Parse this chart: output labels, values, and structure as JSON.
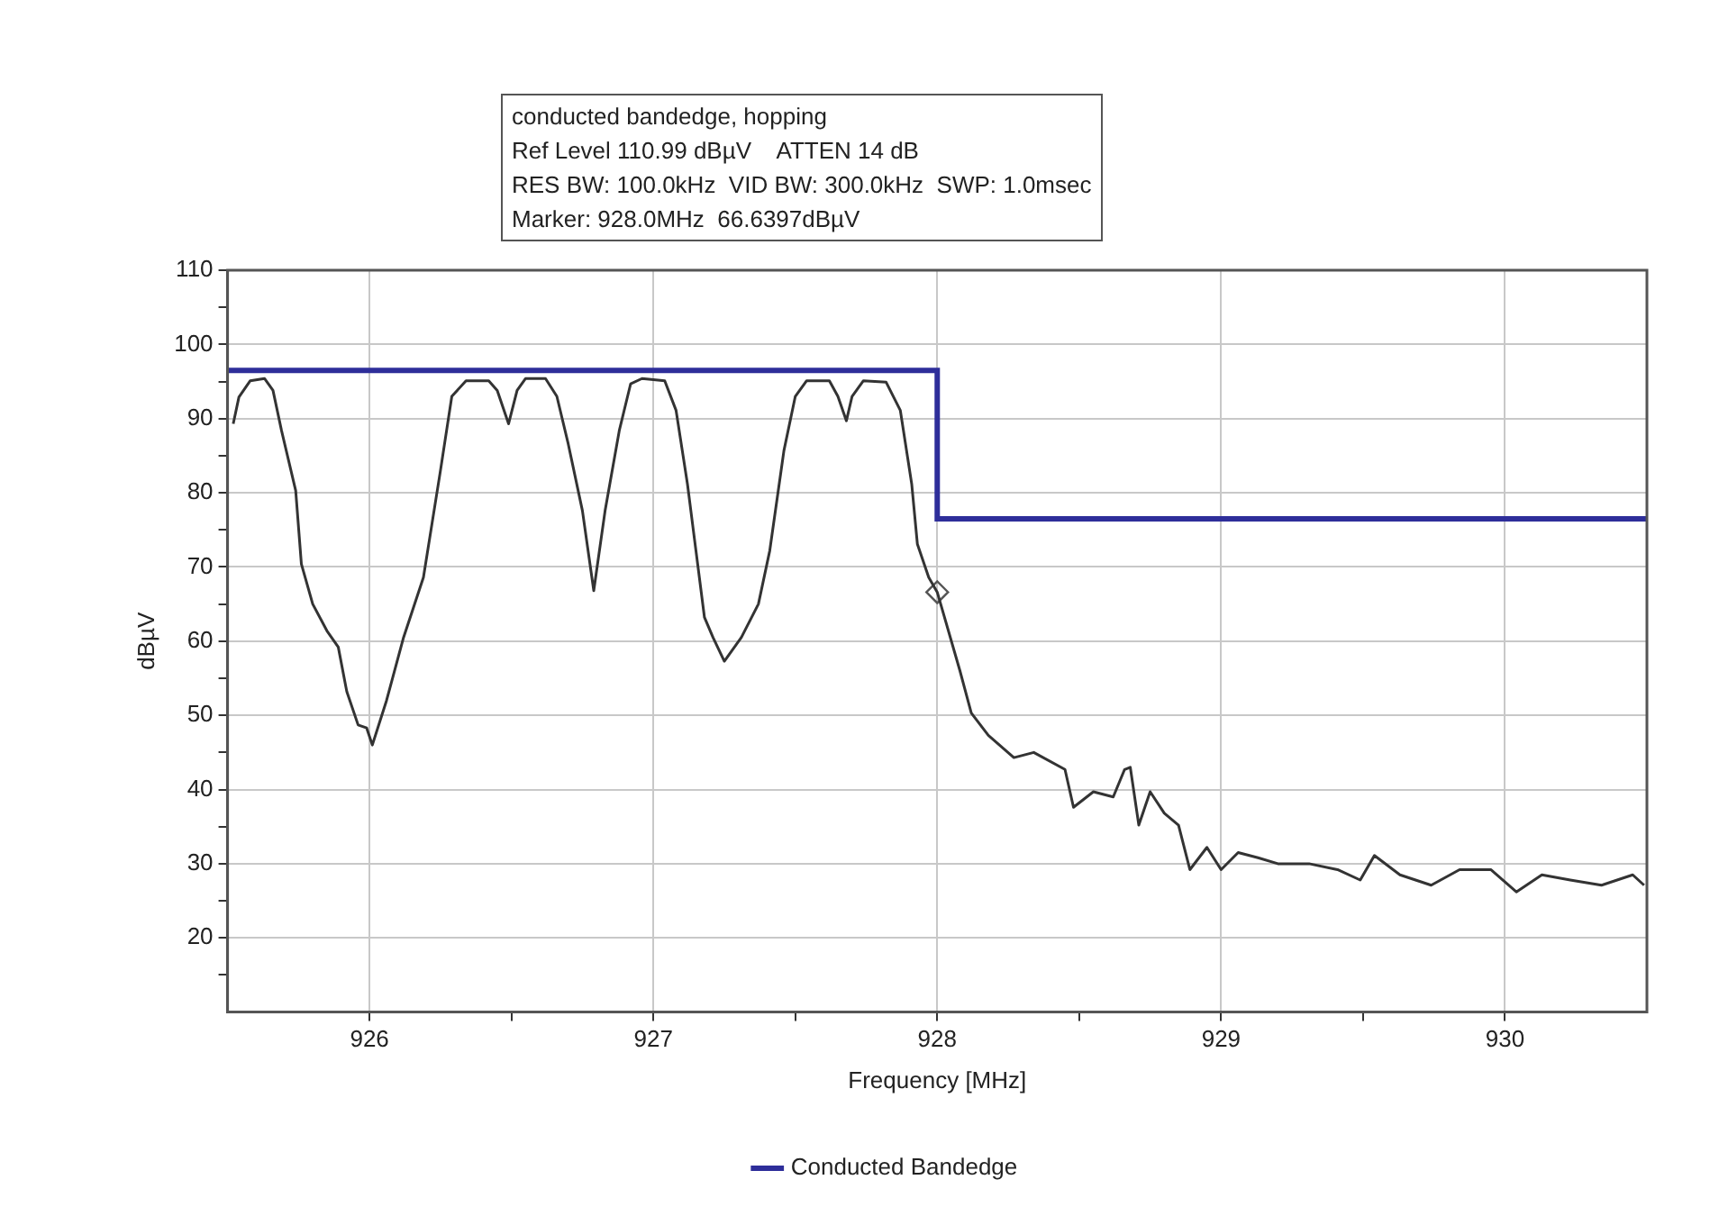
{
  "chart_data": {
    "type": "line",
    "title": "conducted bandedge, hopping",
    "annotations": [
      "Ref Level 110.99 dBµV    ATTEN 14 dB",
      "RES BW: 100.0kHz  VID BW: 300.0kHz  SWP: 1.0msec",
      "Marker: 928.0MHz  66.6397dBµV"
    ],
    "xlabel": "Frequency [MHz]",
    "ylabel": "dBµV",
    "xlim": [
      925.5,
      930.5
    ],
    "xticks": [
      926,
      {
        "value": 926.5,
        "label": null
      },
      927,
      {
        "value": 927.5,
        "label": null
      },
      928,
      {
        "value": 928.5,
        "label": null
      },
      929,
      {
        "value": 929.5,
        "label": null
      },
      930
    ],
    "ylim": [
      10,
      110
    ],
    "yticks": [
      {
        "value": 15,
        "label": null
      },
      20,
      {
        "value": 25,
        "label": null
      },
      30,
      {
        "value": 35,
        "label": null
      },
      40,
      {
        "value": 45,
        "label": null
      },
      50,
      {
        "value": 55,
        "label": null
      },
      60,
      {
        "value": 65,
        "label": null
      },
      70,
      {
        "value": 75,
        "label": null
      },
      80,
      {
        "value": 85,
        "label": null
      },
      90,
      {
        "value": 95,
        "label": null
      },
      100,
      {
        "value": 105,
        "label": null
      },
      110
    ],
    "grid": true,
    "legend": "bottom",
    "series": [
      {
        "type": "line",
        "color": "#333333",
        "x": [
          925.52,
          925.54,
          925.58,
          925.63,
          925.66,
          925.69,
          925.74,
          925.76,
          925.8,
          925.85,
          925.89,
          925.92,
          925.96,
          925.99,
          926.01,
          926.06,
          926.12,
          926.19,
          926.25,
          926.29,
          926.34,
          926.42,
          926.45,
          926.49,
          926.52,
          926.55,
          926.62,
          926.66,
          926.7,
          926.75,
          926.79,
          926.83,
          926.88,
          926.92,
          926.96,
          927.04,
          927.08,
          927.12,
          927.15,
          927.18,
          927.21,
          927.25,
          927.31,
          927.37,
          927.41,
          927.46,
          927.5,
          927.54,
          927.62,
          927.65,
          927.68,
          927.7,
          927.74,
          927.82,
          927.87,
          927.91,
          927.93,
          927.97,
          928.0,
          928.08,
          928.12,
          928.18,
          928.27,
          928.34,
          928.45,
          928.48,
          928.55,
          928.62,
          928.66,
          928.68,
          928.71,
          928.75,
          928.8,
          928.85,
          928.89,
          928.95,
          929.0,
          929.06,
          929.13,
          929.2,
          929.31,
          929.41,
          929.49,
          929.54,
          929.63,
          929.74,
          929.84,
          929.95,
          930.04,
          930.13,
          930.23,
          930.34,
          930.45,
          930.49
        ],
        "values": [
          89.3,
          92.9,
          95.1,
          95.4,
          93.8,
          88.4,
          80.3,
          70.4,
          65,
          61.4,
          59.2,
          53.2,
          48.7,
          48.3,
          46,
          52,
          60.5,
          68.6,
          83,
          93,
          95.1,
          95.1,
          93.8,
          89.3,
          93.8,
          95.4,
          95.4,
          93,
          86.6,
          77.6,
          66.8,
          77.6,
          88.4,
          94.7,
          95.4,
          95.1,
          91.1,
          81.2,
          72.2,
          63.2,
          60.5,
          57.3,
          60.5,
          65,
          72.2,
          85.7,
          93,
          95.1,
          95.1,
          93,
          89.7,
          93,
          95.1,
          94.9,
          91.1,
          81.2,
          73.1,
          68.6,
          66.6,
          56,
          50.3,
          47.3,
          44.3,
          45,
          42.7,
          37.6,
          39.7,
          39,
          42.7,
          43,
          35.2,
          39.7,
          36.8,
          35.2,
          29.2,
          32.2,
          29.2,
          31.5,
          30.8,
          30,
          30,
          29.2,
          27.8,
          31.1,
          28.5,
          27.1,
          29.2,
          29.2,
          26.2,
          28.5,
          27.8,
          27.1,
          28.5,
          27.1
        ]
      },
      {
        "type": "step",
        "name": "Conducted Bandedge",
        "color": "#2e2e9a",
        "x": [
          925.5,
          928,
          930.5
        ],
        "values": [
          96.5,
          76.5,
          76.5
        ]
      },
      {
        "type": "scatter",
        "color": "#555555",
        "marker": "diamond",
        "x": [
          928.0
        ],
        "values": [
          66.6
        ]
      }
    ]
  }
}
